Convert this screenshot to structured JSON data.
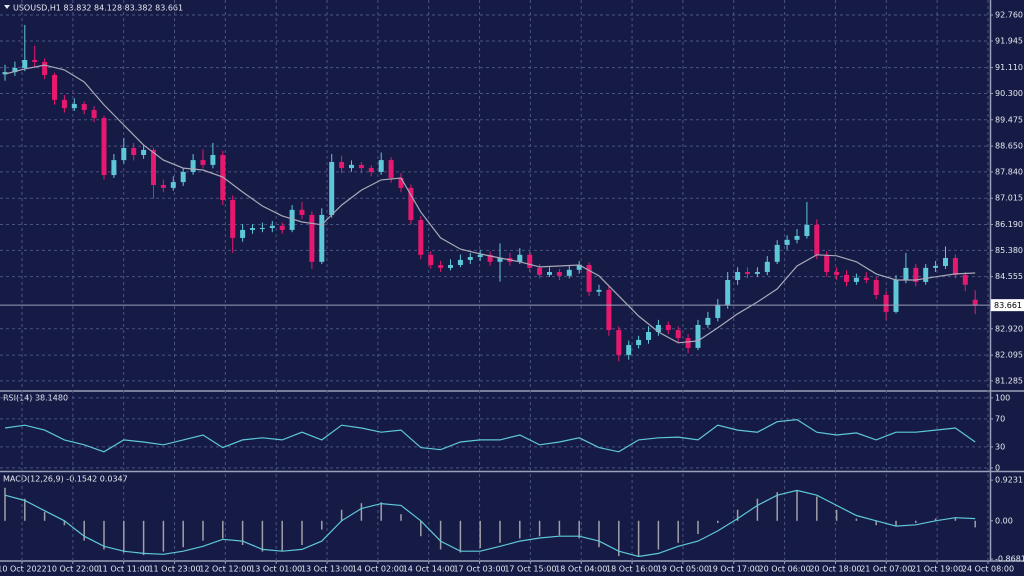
{
  "chart_data": [
    {
      "type": "candlestick",
      "title": "USOUSD,H1  83.832 84.128 83.382 83.661",
      "x_labels": [
        "10 Oct 2022",
        "10 Oct 22:00",
        "11 Oct 11:00",
        "11 Oct 23:00",
        "12 Oct 12:00",
        "13 Oct 01:00",
        "13 Oct 13:00",
        "14 Oct 02:00",
        "14 Oct 14:00",
        "17 Oct 03:00",
        "17 Oct 15:00",
        "18 Oct 04:00",
        "18 Oct 16:00",
        "19 Oct 05:00",
        "19 Oct 17:00",
        "20 Oct 06:00",
        "20 Oct 18:00",
        "21 Oct 07:00",
        "21 Oct 19:00",
        "24 Oct 08:00"
      ],
      "up_color": "#5ec8d8",
      "down_color": "#e6196e",
      "candles": [
        [
          90.9,
          91.2,
          90.7,
          90.97
        ],
        [
          90.97,
          91.3,
          90.85,
          91.1
        ],
        [
          91.1,
          92.45,
          91.0,
          91.35
        ],
        [
          91.35,
          91.8,
          91.1,
          91.29
        ],
        [
          91.29,
          91.4,
          90.75,
          90.88
        ],
        [
          90.88,
          90.95,
          89.95,
          90.1
        ],
        [
          90.1,
          90.25,
          89.7,
          89.84
        ],
        [
          89.84,
          90.15,
          89.75,
          89.97
        ],
        [
          89.97,
          90.05,
          89.65,
          89.78
        ],
        [
          89.78,
          89.9,
          89.4,
          89.53
        ],
        [
          89.53,
          89.6,
          87.6,
          87.74
        ],
        [
          87.74,
          88.4,
          87.65,
          88.21
        ],
        [
          88.21,
          88.9,
          88.1,
          88.59
        ],
        [
          88.59,
          88.75,
          88.2,
          88.37
        ],
        [
          88.37,
          88.7,
          88.25,
          88.53
        ],
        [
          88.53,
          88.6,
          87.0,
          87.43
        ],
        [
          87.43,
          87.6,
          87.2,
          87.34
        ],
        [
          87.34,
          87.7,
          87.25,
          87.52
        ],
        [
          87.52,
          87.95,
          87.4,
          87.84
        ],
        [
          87.84,
          88.4,
          87.75,
          88.21
        ],
        [
          88.21,
          88.55,
          87.95,
          88.06
        ],
        [
          88.06,
          88.75,
          87.95,
          88.37
        ],
        [
          88.37,
          88.5,
          86.8,
          86.96
        ],
        [
          86.96,
          87.1,
          85.3,
          85.77
        ],
        [
          85.77,
          86.2,
          85.65,
          86.02
        ],
        [
          86.02,
          86.2,
          85.9,
          86.08
        ],
        [
          86.08,
          86.25,
          85.95,
          86.08
        ],
        [
          86.08,
          86.3,
          85.95,
          86.15
        ],
        [
          86.15,
          86.25,
          85.9,
          86.02
        ],
        [
          86.02,
          86.8,
          85.95,
          86.65
        ],
        [
          86.65,
          86.9,
          86.35,
          86.49
        ],
        [
          86.49,
          86.6,
          84.8,
          85.02
        ],
        [
          85.02,
          86.7,
          84.95,
          86.49
        ],
        [
          86.49,
          88.4,
          86.4,
          88.15
        ],
        [
          88.15,
          88.35,
          87.8,
          87.96
        ],
        [
          87.96,
          88.2,
          87.85,
          88.06
        ],
        [
          88.06,
          88.15,
          87.8,
          87.96
        ],
        [
          87.96,
          88.05,
          87.7,
          87.84
        ],
        [
          87.84,
          88.45,
          87.75,
          88.21
        ],
        [
          88.21,
          88.3,
          87.5,
          87.65
        ],
        [
          87.65,
          87.8,
          87.2,
          87.34
        ],
        [
          87.34,
          87.45,
          86.2,
          86.33
        ],
        [
          86.33,
          86.45,
          85.1,
          85.24
        ],
        [
          85.24,
          85.35,
          84.8,
          84.92
        ],
        [
          84.92,
          85.05,
          84.7,
          84.83
        ],
        [
          84.83,
          85.1,
          84.75,
          84.92
        ],
        [
          84.92,
          85.25,
          84.85,
          85.08
        ],
        [
          85.08,
          85.3,
          84.95,
          85.17
        ],
        [
          85.17,
          85.4,
          85.05,
          85.24
        ],
        [
          85.24,
          85.35,
          84.9,
          85.02
        ],
        [
          85.02,
          85.6,
          84.4,
          85.14
        ],
        [
          85.14,
          85.3,
          84.9,
          85.02
        ],
        [
          85.02,
          85.45,
          84.95,
          85.24
        ],
        [
          85.24,
          85.35,
          84.7,
          84.83
        ],
        [
          84.83,
          84.95,
          84.5,
          84.61
        ],
        [
          84.61,
          84.85,
          84.55,
          84.7
        ],
        [
          84.7,
          84.8,
          84.45,
          84.58
        ],
        [
          84.58,
          84.9,
          84.5,
          84.77
        ],
        [
          84.77,
          85.05,
          84.65,
          84.92
        ],
        [
          84.92,
          85.0,
          83.95,
          84.08
        ],
        [
          84.08,
          84.3,
          83.95,
          84.14
        ],
        [
          84.14,
          84.25,
          82.7,
          82.88
        ],
        [
          82.88,
          83.0,
          81.9,
          82.1
        ],
        [
          82.1,
          82.55,
          81.95,
          82.41
        ],
        [
          82.41,
          82.7,
          82.3,
          82.57
        ],
        [
          82.57,
          83.0,
          82.45,
          82.82
        ],
        [
          82.82,
          83.2,
          82.7,
          83.04
        ],
        [
          83.04,
          83.15,
          82.75,
          82.88
        ],
        [
          82.88,
          83.0,
          82.5,
          82.63
        ],
        [
          82.63,
          82.75,
          82.15,
          82.32
        ],
        [
          82.32,
          83.2,
          82.25,
          83.04
        ],
        [
          83.04,
          83.45,
          82.95,
          83.26
        ],
        [
          83.26,
          83.85,
          83.15,
          83.67
        ],
        [
          83.67,
          84.7,
          83.55,
          84.45
        ],
        [
          84.45,
          84.85,
          84.3,
          84.7
        ],
        [
          84.7,
          84.85,
          84.5,
          84.64
        ],
        [
          84.64,
          84.85,
          84.55,
          84.7
        ],
        [
          84.7,
          85.2,
          84.6,
          85.02
        ],
        [
          85.02,
          85.7,
          84.95,
          85.55
        ],
        [
          85.55,
          85.85,
          85.4,
          85.71
        ],
        [
          85.71,
          86.05,
          85.6,
          85.83
        ],
        [
          85.83,
          86.9,
          85.75,
          86.18
        ],
        [
          86.18,
          86.35,
          85.1,
          85.24
        ],
        [
          85.24,
          85.35,
          84.55,
          84.7
        ],
        [
          84.7,
          84.85,
          84.45,
          84.61
        ],
        [
          84.61,
          84.75,
          84.25,
          84.39
        ],
        [
          84.39,
          84.65,
          84.3,
          84.52
        ],
        [
          84.52,
          84.7,
          84.35,
          84.45
        ],
        [
          84.45,
          84.55,
          83.85,
          83.98
        ],
        [
          83.98,
          84.1,
          83.2,
          83.45
        ],
        [
          83.45,
          84.6,
          83.4,
          84.45
        ],
        [
          84.45,
          85.3,
          84.35,
          84.83
        ],
        [
          84.83,
          84.95,
          84.25,
          84.39
        ],
        [
          84.39,
          84.95,
          84.3,
          84.83
        ],
        [
          84.83,
          85.05,
          84.7,
          84.89
        ],
        [
          84.89,
          85.5,
          84.8,
          85.14
        ],
        [
          85.14,
          85.25,
          84.5,
          84.61
        ],
        [
          84.61,
          84.7,
          84.1,
          84.3
        ],
        [
          83.832,
          84.128,
          83.382,
          83.661
        ]
      ],
      "ma": {
        "color": "#a9a9b8",
        "values": [
          90.91,
          91.07,
          91.19,
          91.04,
          90.66,
          89.94,
          89.31,
          88.68,
          88.21,
          87.96,
          87.9,
          87.68,
          87.21,
          86.77,
          86.46,
          86.27,
          86.18,
          86.8,
          87.27,
          87.59,
          87.65,
          86.58,
          85.77,
          85.42,
          85.27,
          85.14,
          85.02,
          84.86,
          84.89,
          84.92,
          84.58,
          83.95,
          83.32,
          82.82,
          82.48,
          82.54,
          82.95,
          83.39,
          83.76,
          84.17,
          84.89,
          85.24,
          85.21,
          85.02,
          84.64,
          84.45,
          84.45,
          84.55,
          84.64,
          84.67
        ]
      },
      "ylim": [
        81.0,
        93.2
      ],
      "yticks": [
        {
          "value": 92.76,
          "label": "92.760"
        },
        91.945,
        {
          "value": 91.11,
          "label": "91.110"
        },
        {
          "value": 90.3,
          "label": "90.300"
        },
        89.475,
        {
          "value": 88.65,
          "label": "88.650"
        },
        {
          "value": 87.84,
          "label": "87.840"
        },
        87.015,
        {
          "value": 86.19,
          "label": "86.190"
        },
        {
          "value": 85.38,
          "label": "85.380"
        },
        84.555,
        {
          "value": 82.92,
          "label": "82.920"
        },
        82.095,
        81.285
      ],
      "grid": true
    },
    {
      "type": "line",
      "title": "RSI(14) 38.1480",
      "color": "#5ec8d8",
      "values": [
        57,
        61,
        54,
        40,
        33,
        23,
        40,
        37,
        33,
        40,
        47,
        29,
        40,
        43,
        40,
        51,
        40,
        61,
        57,
        51,
        54,
        29,
        26,
        37,
        40,
        40,
        47,
        33,
        37,
        43,
        29,
        23,
        40,
        43,
        44,
        40,
        61,
        54,
        51,
        66,
        69,
        51,
        47,
        50,
        40,
        51,
        51,
        54,
        57,
        37
      ],
      "ylim": [
        -3,
        107
      ],
      "yticks": [
        100,
        70,
        30,
        0
      ],
      "grid": true
    },
    {
      "type": "macd",
      "title": "MACD(12,26,9) -0.1542 0.0347",
      "histogram": {
        "color": "#a0a0a8",
        "values": [
          0.75,
          0.5,
          0.2,
          -0.1,
          -0.45,
          -0.65,
          -0.72,
          -0.78,
          -0.7,
          -0.6,
          -0.45,
          -0.4,
          -0.55,
          -0.7,
          -0.68,
          -0.55,
          -0.2,
          0.25,
          0.4,
          0.42,
          0.15,
          -0.35,
          -0.65,
          -0.72,
          -0.62,
          -0.5,
          -0.4,
          -0.35,
          -0.33,
          -0.4,
          -0.6,
          -0.8,
          -0.8,
          -0.65,
          -0.5,
          -0.3,
          -0.05,
          0.25,
          0.5,
          0.65,
          0.7,
          0.55,
          0.25,
          0.05,
          -0.1,
          -0.12,
          -0.05,
          0.05,
          0.08,
          -0.15
        ]
      },
      "signal": {
        "color": "#5ec8d8",
        "values": [
          0.58,
          0.46,
          0.23,
          0.0,
          -0.35,
          -0.58,
          -0.69,
          -0.74,
          -0.76,
          -0.69,
          -0.58,
          -0.42,
          -0.46,
          -0.65,
          -0.69,
          -0.65,
          -0.46,
          0.0,
          0.28,
          0.39,
          0.35,
          0.0,
          -0.46,
          -0.69,
          -0.69,
          -0.58,
          -0.46,
          -0.39,
          -0.35,
          -0.35,
          -0.46,
          -0.69,
          -0.81,
          -0.74,
          -0.58,
          -0.46,
          -0.23,
          0.05,
          0.35,
          0.58,
          0.69,
          0.58,
          0.35,
          0.12,
          0.0,
          -0.12,
          -0.09,
          0.0,
          0.07,
          0.05
        ]
      },
      "ylim": [
        -0.89,
        1.085
      ],
      "yticks": [
        0.9231,
        {
          "value": 0,
          "label": "0.00"
        },
        -0.8681
      ],
      "grid": false
    }
  ]
}
